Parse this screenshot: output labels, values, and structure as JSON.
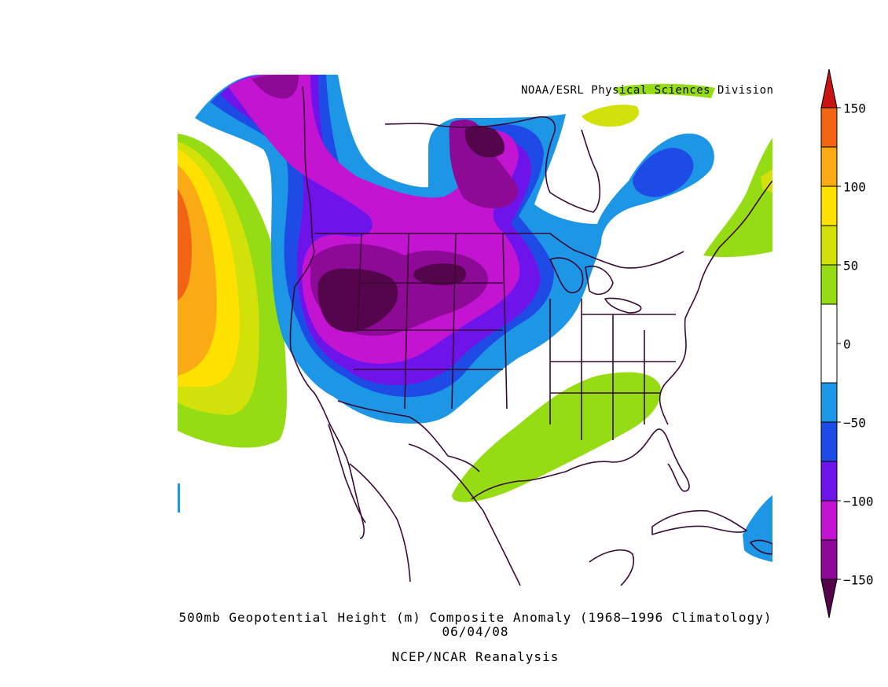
{
  "map": {
    "credit": "NOAA/ESRL Physical Sciences Division",
    "title": "500mb Geopotential Height (m) Composite Anomaly (1968–1996 Climatology)",
    "date": "06/04/08",
    "source": "NCEP/NCAR Reanalysis",
    "region": "North America"
  },
  "colorbar": {
    "labels": [
      "150",
      "100",
      "50",
      "0",
      "−50",
      "−100",
      "−150"
    ],
    "colors": {
      "over_max": "#c81414",
      "125_150": "#f06414",
      "100_125": "#faaa14",
      "75_100": "#ffe100",
      "50_75": "#d2e10a",
      "25_50": "#96dc14",
      "-25_25": "#ffffff",
      "-50_-25": "#1e96e6",
      "-75_-50": "#1e4be6",
      "-100_-75": "#6e14eb",
      "-125_-100": "#c314d2",
      "-150_-125": "#8c0a96",
      "under_min": "#55054b"
    }
  }
}
